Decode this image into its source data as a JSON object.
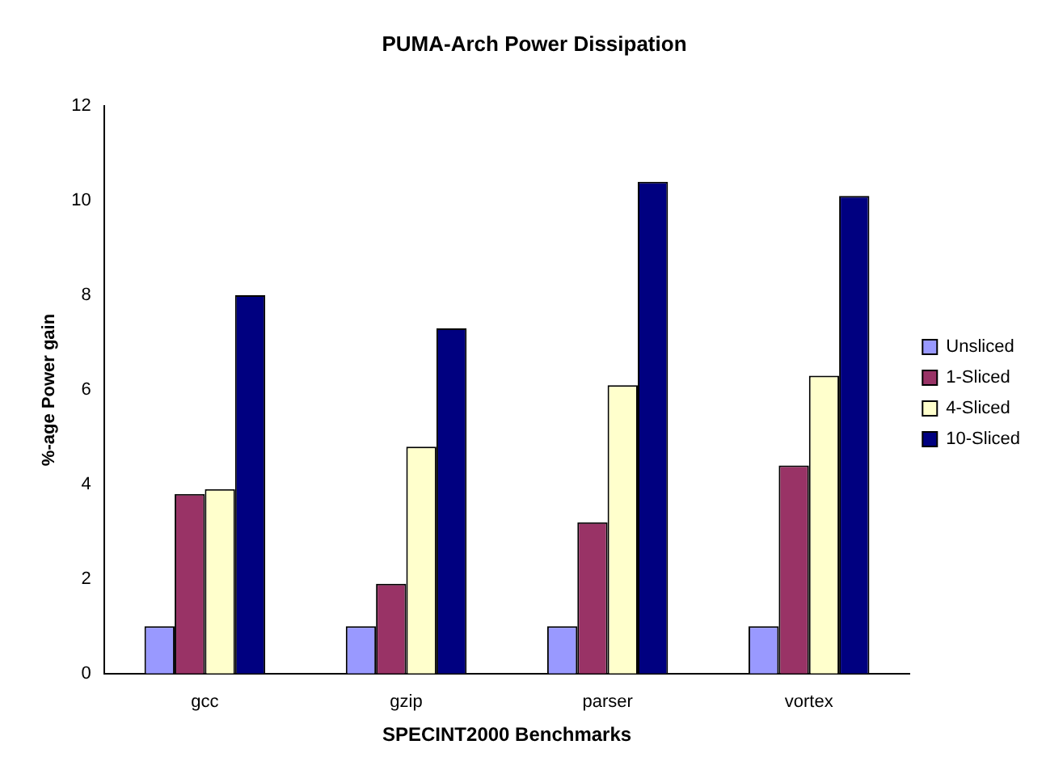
{
  "chart_data": {
    "type": "bar",
    "title": "PUMA-Arch Power Dissipation",
    "xlabel": "SPECINT2000 Benchmarks",
    "ylabel": "%-age Power gain",
    "categories": [
      "gcc",
      "gzip",
      "parser",
      "vortex"
    ],
    "series": [
      {
        "name": "Unsliced",
        "color": "#9999ff",
        "values": [
          1,
          1,
          1,
          1
        ]
      },
      {
        "name": "1-Sliced",
        "color": "#993366",
        "values": [
          3.8,
          1.9,
          3.2,
          4.4
        ]
      },
      {
        "name": "4-Sliced",
        "color": "#ffffcc",
        "values": [
          3.9,
          4.8,
          6.1,
          6.3
        ]
      },
      {
        "name": "10-Sliced",
        "color": "#000080",
        "values": [
          8.0,
          7.3,
          10.4,
          10.1
        ]
      }
    ],
    "ylim": [
      0,
      12
    ],
    "yticks": [
      0,
      2,
      4,
      6,
      8,
      10,
      12
    ],
    "grid": false,
    "legend": "right"
  }
}
